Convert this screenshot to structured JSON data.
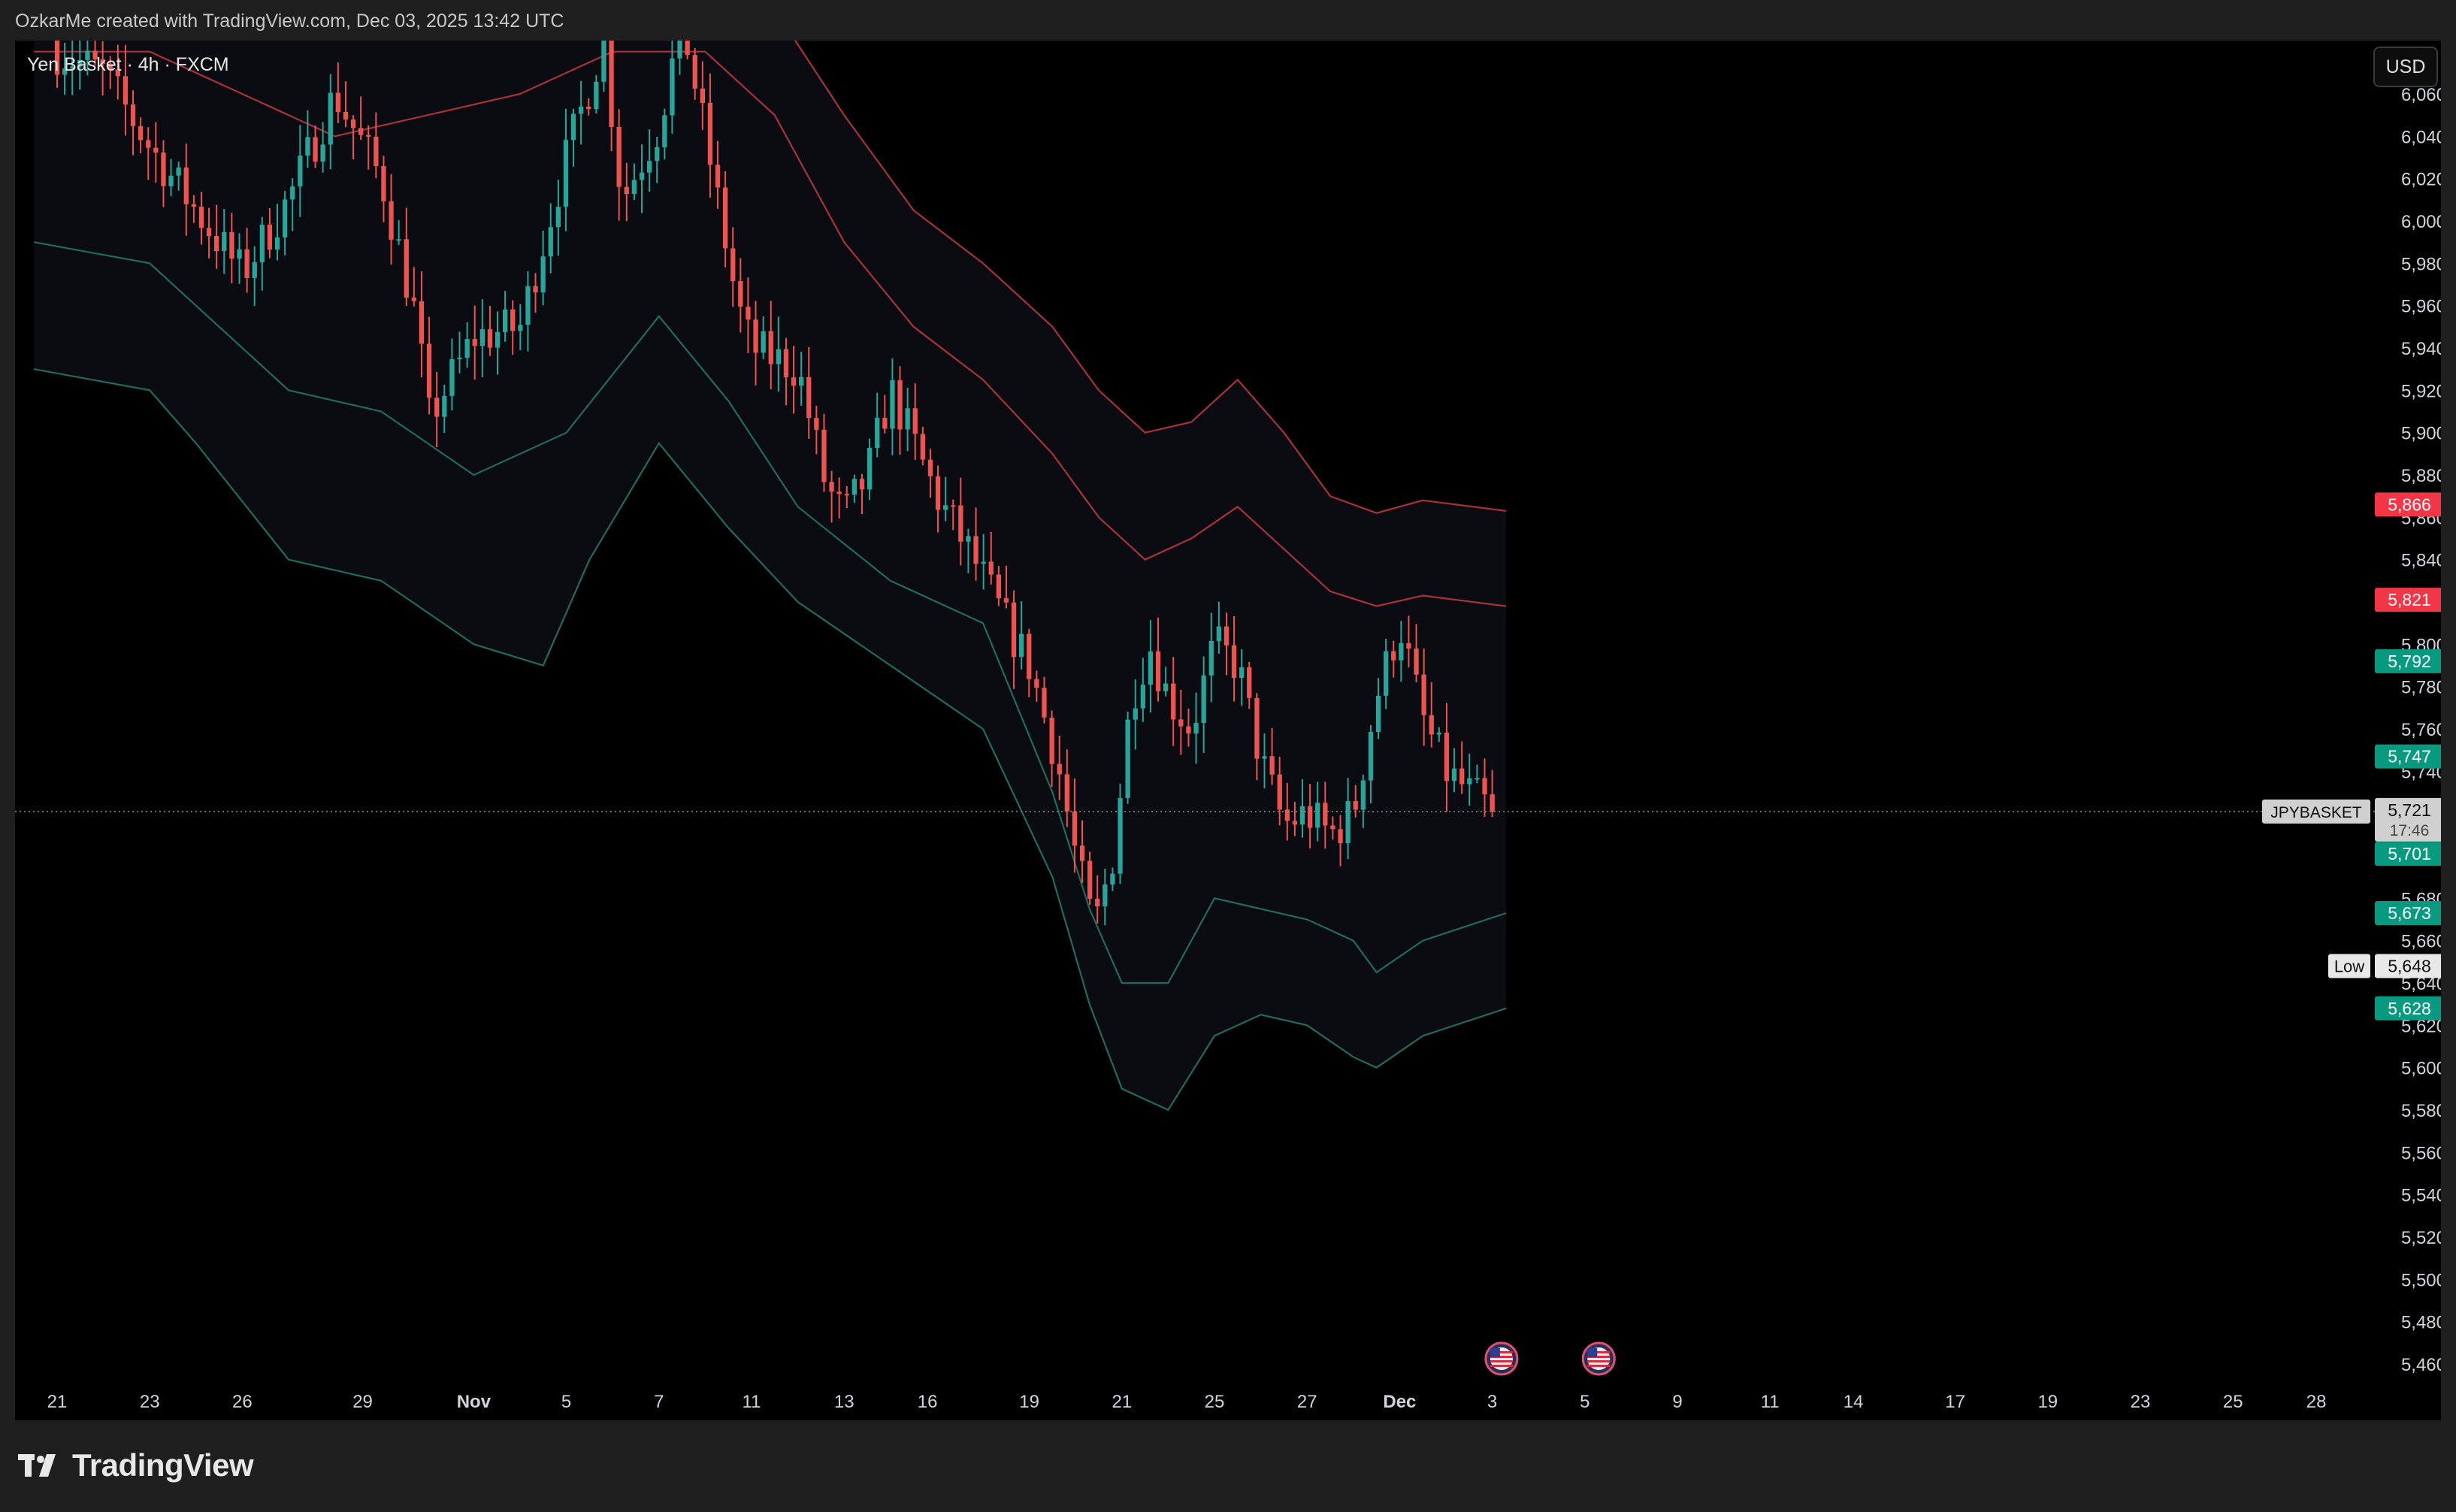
{
  "header": {
    "caption": "OzkarMe created with TradingView.com, Dec 03, 2025 13:42 UTC",
    "symbol_title": "Yen Basket · 4h · FXCM",
    "currency_button": "USD"
  },
  "footer": {
    "brand": "TradingView"
  },
  "colors": {
    "background": "#000000",
    "frame": "#1f1f1f",
    "up_candle": "#26a69a",
    "down_candle": "#ef5350",
    "upper_band": "#a8323a",
    "lower_band": "#1f6b5c",
    "band_fill": "#0b0b12"
  },
  "chart_data": {
    "type": "candlestick",
    "symbol": "JPYBASKET",
    "timeframe": "4h",
    "y_axis": {
      "min": 5450,
      "max": 6080,
      "ticks": [
        6060,
        6040,
        6020,
        6000,
        5980,
        5960,
        5940,
        5920,
        5900,
        5880,
        5860,
        5840,
        5820,
        5800,
        5780,
        5760,
        5740,
        5720,
        5700,
        5680,
        5660,
        5640,
        5620,
        5600,
        5580,
        5560,
        5540,
        5520,
        5500,
        5480,
        5460
      ]
    },
    "x_axis": {
      "labels": [
        {
          "text": "21",
          "pos": 0.0
        },
        {
          "text": "23",
          "pos": 2.0
        },
        {
          "text": "26",
          "pos": 4.0
        },
        {
          "text": "29",
          "pos": 6.6
        },
        {
          "text": "Nov",
          "pos": 9.0,
          "bold": true
        },
        {
          "text": "5",
          "pos": 11.0
        },
        {
          "text": "7",
          "pos": 13.0
        },
        {
          "text": "11",
          "pos": 15.0
        },
        {
          "text": "13",
          "pos": 17.0
        },
        {
          "text": "16",
          "pos": 18.8
        },
        {
          "text": "19",
          "pos": 21.0
        },
        {
          "text": "21",
          "pos": 23.0
        },
        {
          "text": "25",
          "pos": 25.0
        },
        {
          "text": "27",
          "pos": 27.0
        },
        {
          "text": "Dec",
          "pos": 29.0,
          "bold": true
        },
        {
          "text": "3",
          "pos": 31.0
        },
        {
          "text": "5",
          "pos": 33.0
        },
        {
          "text": "9",
          "pos": 35.0
        },
        {
          "text": "11",
          "pos": 37.0
        },
        {
          "text": "14",
          "pos": 38.8
        },
        {
          "text": "17",
          "pos": 41.0
        },
        {
          "text": "19",
          "pos": 43.0
        },
        {
          "text": "23",
          "pos": 45.0
        },
        {
          "text": "25",
          "pos": 47.0
        },
        {
          "text": "28",
          "pos": 48.8
        }
      ]
    },
    "last_price": {
      "label": "JPYBASKET",
      "value": "5,721",
      "countdown": "17:46"
    },
    "price_labels": [
      {
        "value": "5,866",
        "color": "#f23645"
      },
      {
        "value": "5,821",
        "color": "#f23645"
      },
      {
        "value": "5,792",
        "color": "#089981"
      },
      {
        "value": "5,747",
        "color": "#089981"
      },
      {
        "value": "5,701",
        "color": "#089981"
      },
      {
        "value": "5,673",
        "color": "#089981"
      },
      {
        "value": "5,648",
        "color": "#e8e8e8",
        "tag": "Low"
      },
      {
        "value": "5,628",
        "color": "#089981"
      }
    ],
    "close_path": [
      [
        0,
        6080
      ],
      [
        1,
        6070
      ],
      [
        2,
        6035
      ],
      [
        3,
        6005
      ],
      [
        4,
        5975
      ],
      [
        5,
        6010
      ],
      [
        6,
        6060
      ],
      [
        7,
        6020
      ],
      [
        7.8,
        5950
      ],
      [
        8,
        5905
      ],
      [
        9,
        5945
      ],
      [
        10,
        5950
      ],
      [
        11,
        6030
      ],
      [
        11.8,
        6085
      ],
      [
        12.2,
        6010
      ],
      [
        13,
        6045
      ],
      [
        13.5,
        6095
      ],
      [
        14,
        6040
      ],
      [
        14.7,
        5960
      ],
      [
        15,
        5940
      ],
      [
        16,
        5930
      ],
      [
        16.6,
        5875
      ],
      [
        17,
        5860
      ],
      [
        17.5,
        5880
      ],
      [
        18,
        5920
      ],
      [
        19,
        5870
      ],
      [
        19.8,
        5840
      ],
      [
        20.5,
        5810
      ],
      [
        21,
        5790
      ],
      [
        21.6,
        5745
      ],
      [
        22,
        5700
      ],
      [
        22.4,
        5665
      ],
      [
        22.8,
        5700
      ],
      [
        23.2,
        5775
      ],
      [
        23.6,
        5800
      ],
      [
        24,
        5775
      ],
      [
        24.5,
        5760
      ],
      [
        25,
        5800
      ],
      [
        25.5,
        5790
      ],
      [
        26,
        5745
      ],
      [
        26.5,
        5715
      ],
      [
        27,
        5720
      ],
      [
        27.5,
        5710
      ],
      [
        28,
        5720
      ],
      [
        28.5,
        5775
      ],
      [
        29,
        5810
      ],
      [
        29.5,
        5765
      ],
      [
        30,
        5740
      ],
      [
        30.5,
        5730
      ],
      [
        31,
        5721
      ]
    ],
    "band_upper_outer": [
      [
        -0.5,
        6130
      ],
      [
        2,
        6130
      ],
      [
        4,
        6115
      ],
      [
        6,
        6110
      ],
      [
        8,
        6110
      ],
      [
        10,
        6115
      ],
      [
        12,
        6140
      ],
      [
        14,
        6130
      ],
      [
        15.5,
        6100
      ],
      [
        17,
        6050
      ],
      [
        18.5,
        6005
      ],
      [
        20,
        5980
      ],
      [
        21.5,
        5950
      ],
      [
        22.5,
        5920
      ],
      [
        23.5,
        5900
      ],
      [
        24.5,
        5905
      ],
      [
        25.5,
        5925
      ],
      [
        26.5,
        5900
      ],
      [
        27.5,
        5870
      ],
      [
        28.5,
        5862
      ],
      [
        29.5,
        5868
      ],
      [
        31.3,
        5863
      ]
    ],
    "band_upper_inner": [
      [
        -0.5,
        6080
      ],
      [
        2,
        6080
      ],
      [
        4,
        6060
      ],
      [
        6,
        6040
      ],
      [
        8,
        6050
      ],
      [
        10,
        6060
      ],
      [
        12,
        6080
      ],
      [
        14,
        6080
      ],
      [
        15.5,
        6050
      ],
      [
        17,
        5990
      ],
      [
        18.5,
        5950
      ],
      [
        20,
        5925
      ],
      [
        21.5,
        5890
      ],
      [
        22.5,
        5860
      ],
      [
        23.5,
        5840
      ],
      [
        24.5,
        5850
      ],
      [
        25.5,
        5865
      ],
      [
        26.5,
        5845
      ],
      [
        27.5,
        5825
      ],
      [
        28.5,
        5818
      ],
      [
        29.5,
        5823
      ],
      [
        31.3,
        5818
      ]
    ],
    "band_lower_inner": [
      [
        -0.5,
        5990
      ],
      [
        2,
        5980
      ],
      [
        3,
        5960
      ],
      [
        5,
        5920
      ],
      [
        7,
        5910
      ],
      [
        9,
        5880
      ],
      [
        11,
        5900
      ],
      [
        13,
        5955
      ],
      [
        14.5,
        5915
      ],
      [
        16,
        5865
      ],
      [
        18,
        5830
      ],
      [
        20,
        5810
      ],
      [
        21.5,
        5730
      ],
      [
        22.3,
        5675
      ],
      [
        23,
        5640
      ],
      [
        24,
        5640
      ],
      [
        25,
        5680
      ],
      [
        26,
        5675
      ],
      [
        27,
        5670
      ],
      [
        28,
        5660
      ],
      [
        28.5,
        5645
      ],
      [
        29.5,
        5660
      ],
      [
        31.3,
        5673
      ]
    ],
    "band_lower_outer": [
      [
        -0.5,
        5930
      ],
      [
        2,
        5920
      ],
      [
        3,
        5895
      ],
      [
        5,
        5840
      ],
      [
        7,
        5830
      ],
      [
        9,
        5800
      ],
      [
        10.5,
        5790
      ],
      [
        11.5,
        5840
      ],
      [
        13,
        5895
      ],
      [
        14.5,
        5855
      ],
      [
        16,
        5820
      ],
      [
        18,
        5790
      ],
      [
        20,
        5760
      ],
      [
        21.5,
        5690
      ],
      [
        22.3,
        5630
      ],
      [
        23,
        5590
      ],
      [
        24,
        5580
      ],
      [
        25,
        5615
      ],
      [
        26,
        5625
      ],
      [
        27,
        5620
      ],
      [
        28,
        5605
      ],
      [
        28.5,
        5600
      ],
      [
        29.5,
        5615
      ],
      [
        31.3,
        5628
      ]
    ]
  }
}
